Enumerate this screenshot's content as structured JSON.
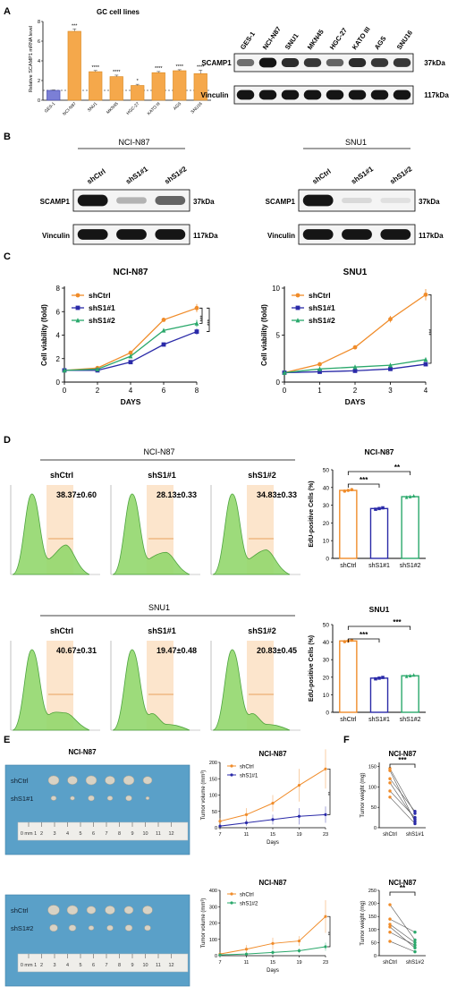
{
  "panels": {
    "A": {
      "letter": "A",
      "chart_title": "GC cell lines",
      "ylabel": "Relative SCAMP1 mRNA level",
      "categories": [
        "GES-1",
        "NCI-N87",
        "SNU1",
        "MKN45",
        "HGC-27",
        "KATO III",
        "AGS",
        "SNU16"
      ],
      "values": [
        1.0,
        7.0,
        2.9,
        2.4,
        1.5,
        2.8,
        3.0,
        2.7
      ],
      "errors": [
        0.05,
        0.25,
        0.12,
        0.15,
        0.12,
        0.12,
        0.1,
        0.35
      ],
      "sig": [
        "",
        "***",
        "****",
        "****",
        "*",
        "****",
        "****",
        "****"
      ],
      "yticks": [
        "0",
        "2",
        "4",
        "6",
        "8"
      ],
      "ylim": [
        0,
        8
      ],
      "bar_color": "#f5a84b",
      "control_color": "#7b7fd6",
      "wb_lanes": [
        "GES-1",
        "NCI-N87",
        "SNU1",
        "MKN45",
        "HGC-27",
        "KATO III",
        "AGS",
        "SNU16"
      ],
      "wb_rows": [
        {
          "label": "SCAMP1",
          "size": "37kDa"
        },
        {
          "label": "Vinculin",
          "size": "117kDa"
        }
      ]
    },
    "B": {
      "letter": "B",
      "blots": [
        {
          "title": "NCI-N87",
          "lanes": [
            "shCtrl",
            "shS1#1",
            "shS1#2"
          ],
          "rows": [
            {
              "label": "SCAMP1",
              "size": "37kDa"
            },
            {
              "label": "Vinculin",
              "size": "117kDa"
            }
          ]
        },
        {
          "title": "SNU1",
          "lanes": [
            "shCtrl",
            "shS1#1",
            "shS1#2"
          ],
          "rows": [
            {
              "label": "SCAMP1",
              "size": "37kDa"
            },
            {
              "label": "Vinculin",
              "size": "117kDa"
            }
          ]
        }
      ]
    },
    "C": {
      "letter": "C",
      "charts": [
        {
          "title": "NCI-N87",
          "xlabel": "DAYS",
          "ylabel": "Cell viability (fold)",
          "x": [
            0,
            2,
            4,
            6,
            8
          ],
          "xticks": [
            "0",
            "2",
            "4",
            "6",
            "8"
          ],
          "yticks": [
            "0",
            "2",
            "4",
            "6",
            "8"
          ],
          "ylim": [
            0,
            8
          ],
          "series": [
            {
              "name": "shCtrl",
              "color": "#f08c2a",
              "marker": "circle",
              "values": [
                1.0,
                1.2,
                2.5,
                5.3,
                6.3
              ],
              "err": [
                0.05,
                0.1,
                0.15,
                0.15,
                0.35
              ]
            },
            {
              "name": "shS1#1",
              "color": "#2a2aa8",
              "marker": "square",
              "values": [
                1.0,
                1.0,
                1.7,
                3.2,
                4.3
              ],
              "err": [
                0.05,
                0.05,
                0.1,
                0.1,
                0.25
              ]
            },
            {
              "name": "shS1#2",
              "color": "#2aa86b",
              "marker": "triangle",
              "values": [
                1.0,
                1.1,
                2.2,
                4.4,
                5.0
              ],
              "err": [
                0.05,
                0.05,
                0.1,
                0.15,
                0.3
              ]
            }
          ],
          "sig": [
            "***",
            "***"
          ]
        },
        {
          "title": "SNU1",
          "xlabel": "DAYS",
          "ylabel": "Cell viability (fold)",
          "x": [
            0,
            1,
            2,
            3,
            4
          ],
          "xticks": [
            "0",
            "1",
            "2",
            "3",
            "4"
          ],
          "yticks": [
            "0",
            "5",
            "10"
          ],
          "ylim": [
            0,
            10
          ],
          "series": [
            {
              "name": "shCtrl",
              "color": "#f08c2a",
              "marker": "circle",
              "values": [
                1.0,
                1.9,
                3.7,
                6.7,
                9.3
              ],
              "err": [
                0.05,
                0.2,
                0.15,
                0.35,
                0.6
              ]
            },
            {
              "name": "shS1#1",
              "color": "#2a2aa8",
              "marker": "square",
              "values": [
                1.0,
                1.1,
                1.2,
                1.4,
                1.9
              ],
              "err": [
                0.05,
                0.05,
                0.05,
                0.1,
                0.15
              ]
            },
            {
              "name": "shS1#2",
              "color": "#2aa86b",
              "marker": "triangle",
              "values": [
                1.0,
                1.4,
                1.6,
                1.8,
                2.4
              ],
              "err": [
                0.05,
                0.05,
                0.1,
                0.1,
                0.15
              ]
            }
          ],
          "sig": [
            "***"
          ]
        }
      ]
    },
    "D": {
      "letter": "D",
      "groups": [
        {
          "title": "NCI-N87",
          "labels": [
            "shCtrl",
            "shS1#1",
            "shS1#2"
          ],
          "values_text": [
            "38.37±0.60",
            "28.13±0.33",
            "34.83±0.33"
          ]
        },
        {
          "title": "SNU1",
          "labels": [
            "shCtrl",
            "shS1#1",
            "shS1#2"
          ],
          "values_text": [
            "40.67±0.31",
            "19.47±0.48",
            "20.83±0.45"
          ]
        }
      ],
      "bars": [
        {
          "title": "NCI-N87",
          "ylabel": "EdU-positive Cells (%)",
          "categories": [
            "shCtrl",
            "shS1#1",
            "shS1#2"
          ],
          "values": [
            38.37,
            28.13,
            34.83
          ],
          "yticks": [
            "0",
            "10",
            "20",
            "30",
            "40",
            "50"
          ],
          "ylim": [
            0,
            50
          ],
          "colors": [
            "#f08c2a",
            "#2a2aa8",
            "#2aa86b"
          ],
          "sig": [
            "***",
            "**"
          ]
        },
        {
          "title": "SNU1",
          "ylabel": "EdU-positive Cells (%)",
          "categories": [
            "shCtrl",
            "shS1#1",
            "shS1#2"
          ],
          "values": [
            40.67,
            19.47,
            20.83
          ],
          "yticks": [
            "0",
            "10",
            "20",
            "30",
            "40",
            "50"
          ],
          "ylim": [
            0,
            50
          ],
          "colors": [
            "#f08c2a",
            "#2a2aa8",
            "#2aa86b"
          ],
          "sig": [
            "***",
            "***"
          ]
        }
      ]
    },
    "E": {
      "letter": "E",
      "photo_title": "NCI-N87",
      "photos": [
        {
          "labels": [
            "shCtrl",
            "shS1#1"
          ]
        },
        {
          "labels": [
            "shCtrl",
            "shS1#2"
          ]
        }
      ],
      "ruler_ticks": [
        "0 mm 1",
        "2",
        "3",
        "4",
        "5",
        "6",
        "7",
        "8",
        "9",
        "10",
        "11",
        "12"
      ],
      "charts": [
        {
          "title": "NCI-N87",
          "xlabel": "Days",
          "ylabel": "Tumor volume (mm³)",
          "x": [
            7,
            11,
            15,
            19,
            23
          ],
          "xticks": [
            "7",
            "11",
            "15",
            "19",
            "23"
          ],
          "yticks": [
            "0",
            "50",
            "100",
            "150",
            "200"
          ],
          "ylim": [
            0,
            200
          ],
          "series": [
            {
              "name": "shCtrl",
              "color": "#f08c2a",
              "values": [
                20,
                40,
                75,
                130,
                180
              ],
              "err": [
                10,
                20,
                25,
                50,
                60
              ]
            },
            {
              "name": "shS1#1",
              "color": "#2a2aa8",
              "values": [
                5,
                15,
                25,
                35,
                40
              ],
              "err": [
                5,
                10,
                15,
                25,
                25
              ]
            }
          ],
          "sig": "**"
        },
        {
          "title": "NCI-N87",
          "xlabel": "Days",
          "ylabel": "Tumor volume (mm³)",
          "x": [
            7,
            11,
            15,
            19,
            23
          ],
          "xticks": [
            "7",
            "11",
            "15",
            "19",
            "23"
          ],
          "yticks": [
            "0",
            "100",
            "200",
            "300",
            "400"
          ],
          "ylim": [
            0,
            400
          ],
          "series": [
            {
              "name": "shCtrl",
              "color": "#f08c2a",
              "values": [
                10,
                40,
                75,
                90,
                240
              ],
              "err": [
                10,
                25,
                35,
                30,
                100
              ]
            },
            {
              "name": "shS1#2",
              "color": "#2aa86b",
              "values": [
                5,
                10,
                20,
                30,
                55
              ],
              "err": [
                5,
                10,
                15,
                15,
                25
              ]
            }
          ],
          "sig": "**"
        }
      ]
    },
    "F": {
      "letter": "F",
      "charts": [
        {
          "title": "NCI-N87",
          "ylabel": "Tumor weight (mg)",
          "categories": [
            "shCtrl",
            "shS1#1"
          ],
          "yticks": [
            "0",
            "50",
            "100",
            "150"
          ],
          "ylim": [
            0,
            160
          ],
          "pairs": [
            [
              145,
              35
            ],
            [
              140,
              15
            ],
            [
              120,
              40
            ],
            [
              110,
              20
            ],
            [
              90,
              25
            ],
            [
              75,
              10
            ]
          ],
          "colors": [
            "#f08c2a",
            "#2a2aa8"
          ],
          "sig": "***"
        },
        {
          "title": "NCI-N87",
          "ylabel": "Tumor weight (mg)",
          "categories": [
            "shCtrl",
            "shS1#2"
          ],
          "yticks": [
            "0",
            "50",
            "100",
            "150",
            "200",
            "250"
          ],
          "ylim": [
            0,
            250
          ],
          "pairs": [
            [
              195,
              60
            ],
            [
              140,
              90
            ],
            [
              120,
              50
            ],
            [
              110,
              30
            ],
            [
              90,
              40
            ],
            [
              55,
              15
            ]
          ],
          "colors": [
            "#f08c2a",
            "#2aa86b"
          ],
          "sig": "**"
        }
      ]
    }
  }
}
